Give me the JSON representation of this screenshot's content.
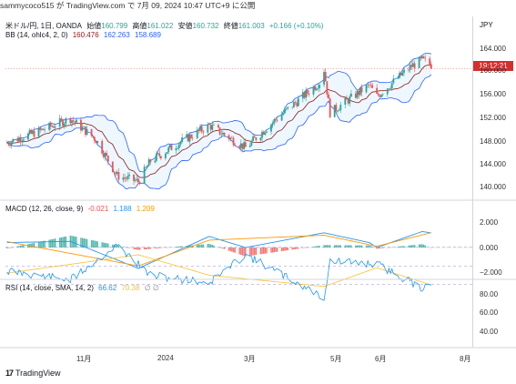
{
  "header": {
    "published": "sammycoco515 が TradingView.com で 7月 09, 2024 10:47 UTC+9 に公開"
  },
  "legend_main": {
    "symbol": "米ドル/円, 1日, OANDA",
    "open_label": "始値",
    "open": "160.799",
    "high_label": "高値",
    "high": "161.022",
    "low_label": "安値",
    "low": "160.732",
    "close_label": "終値",
    "close": "161.003",
    "change": "+0.166 (+0.10%)"
  },
  "legend_bb": {
    "name": "BB (14, ohlc4, 2, 0)",
    "basis": "160.476",
    "upper": "162.263",
    "lower": "158.689"
  },
  "legend_macd": {
    "name": "MACD (12, 26, close, 9)",
    "hist": "-0.021",
    "macd": "1.188",
    "signal": "1.209"
  },
  "legend_rsi": {
    "name": "RSI (14, close, SMA, 14, 2)",
    "rsi": "66.62",
    "ma": "70.38",
    "extra": "∅ ∅"
  },
  "price_axis": {
    "currency": "JPY",
    "countdown": "19:12:21",
    "ticks": [
      "164.000",
      "160.000",
      "156.000",
      "152.000",
      "148.000",
      "144.000",
      "140.000"
    ]
  },
  "macd_axis": {
    "ticks": [
      "2.000",
      "0.000",
      "−2.000"
    ]
  },
  "rsi_axis": {
    "ticks": [
      "80.00",
      "60.00",
      "40.00"
    ]
  },
  "time_axis": {
    "ticks": [
      "11月",
      "2024",
      "3月",
      "5月",
      "6月",
      "8月"
    ]
  },
  "brand": {
    "name": "TradingView"
  },
  "colors": {
    "up": "#26a69a",
    "down": "#ef5350",
    "bb_band": "#2962ff",
    "bb_basis": "#8b1a1a",
    "macd": "#2196f3",
    "signal": "#ff9800",
    "rsi": "#2196f3",
    "rsi_ma": "#fbc02d",
    "rsi_bg": "#ede0fb"
  },
  "chart_data": [
    {
      "type": "candlestick",
      "title": "米ドル/円, 1日, OANDA",
      "x_range": [
        "2023-10",
        "2024-08"
      ],
      "ylim": [
        138,
        166
      ],
      "close_approx": [
        {
          "x": "2023-10-01",
          "y": 147.6
        },
        {
          "x": "2023-10-25",
          "y": 149.8
        },
        {
          "x": "2023-11-13",
          "y": 151.8
        },
        {
          "x": "2023-11-30",
          "y": 148.2
        },
        {
          "x": "2023-12-14",
          "y": 142.0
        },
        {
          "x": "2023-12-28",
          "y": 141.0
        },
        {
          "x": "2024-01-05",
          "y": 144.5
        },
        {
          "x": "2024-01-25",
          "y": 147.8
        },
        {
          "x": "2024-02-13",
          "y": 150.6
        },
        {
          "x": "2024-03-08",
          "y": 146.8
        },
        {
          "x": "2024-03-27",
          "y": 151.4
        },
        {
          "x": "2024-04-26",
          "y": 158.0
        },
        {
          "x": "2024-04-29",
          "y": 160.2
        },
        {
          "x": "2024-05-03",
          "y": 152.8
        },
        {
          "x": "2024-05-29",
          "y": 157.5
        },
        {
          "x": "2024-06-03",
          "y": 155.6
        },
        {
          "x": "2024-06-26",
          "y": 160.8
        },
        {
          "x": "2024-07-03",
          "y": 161.8
        },
        {
          "x": "2024-07-09",
          "y": 161.0
        }
      ],
      "overlay": "Bollinger Bands (14, ohlc4, 2, 0)"
    },
    {
      "type": "line",
      "title": "MACD (12, 26, close, 9)",
      "ylim": [
        -2.5,
        2.5
      ],
      "series": [
        {
          "name": "MACD",
          "values": [
            {
              "x": "2023-10-01",
              "y": 0.4
            },
            {
              "x": "2023-11-13",
              "y": 0.5
            },
            {
              "x": "2023-12-28",
              "y": -1.7
            },
            {
              "x": "2024-02-13",
              "y": 0.9
            },
            {
              "x": "2024-03-08",
              "y": 0.0
            },
            {
              "x": "2024-04-29",
              "y": 1.2
            },
            {
              "x": "2024-05-29",
              "y": 0.4
            },
            {
              "x": "2024-06-03",
              "y": 0.0
            },
            {
              "x": "2024-07-03",
              "y": 1.3
            },
            {
              "x": "2024-07-09",
              "y": 1.188
            }
          ]
        },
        {
          "name": "Signal",
          "values": [
            {
              "x": "2023-10-01",
              "y": 0.5
            },
            {
              "x": "2023-12-28",
              "y": -1.5
            },
            {
              "x": "2024-02-13",
              "y": 0.6
            },
            {
              "x": "2024-04-29",
              "y": 1.0
            },
            {
              "x": "2024-06-03",
              "y": 0.1
            },
            {
              "x": "2024-07-09",
              "y": 1.209
            }
          ]
        }
      ]
    },
    {
      "type": "line",
      "title": "RSI (14, close, SMA, 14, 2)",
      "ylim": [
        25,
        85
      ],
      "series": [
        {
          "name": "RSI",
          "values": [
            {
              "x": "2023-10-01",
              "y": 55
            },
            {
              "x": "2023-11-13",
              "y": 65
            },
            {
              "x": "2023-12-14",
              "y": 28
            },
            {
              "x": "2024-01-05",
              "y": 60
            },
            {
              "x": "2024-02-13",
              "y": 68
            },
            {
              "x": "2024-03-08",
              "y": 38
            },
            {
              "x": "2024-04-29",
              "y": 84
            },
            {
              "x": "2024-05-03",
              "y": 45
            },
            {
              "x": "2024-06-03",
              "y": 48
            },
            {
              "x": "2024-07-03",
              "y": 74
            },
            {
              "x": "2024-07-09",
              "y": 66.62
            }
          ]
        },
        {
          "name": "MA",
          "values": [
            {
              "x": "2023-10-01",
              "y": 58
            },
            {
              "x": "2023-12-28",
              "y": 38
            },
            {
              "x": "2024-02-13",
              "y": 60
            },
            {
              "x": "2024-04-29",
              "y": 72
            },
            {
              "x": "2024-06-03",
              "y": 52
            },
            {
              "x": "2024-07-09",
              "y": 70.38
            }
          ]
        }
      ],
      "band": [
        30,
        70
      ]
    }
  ]
}
